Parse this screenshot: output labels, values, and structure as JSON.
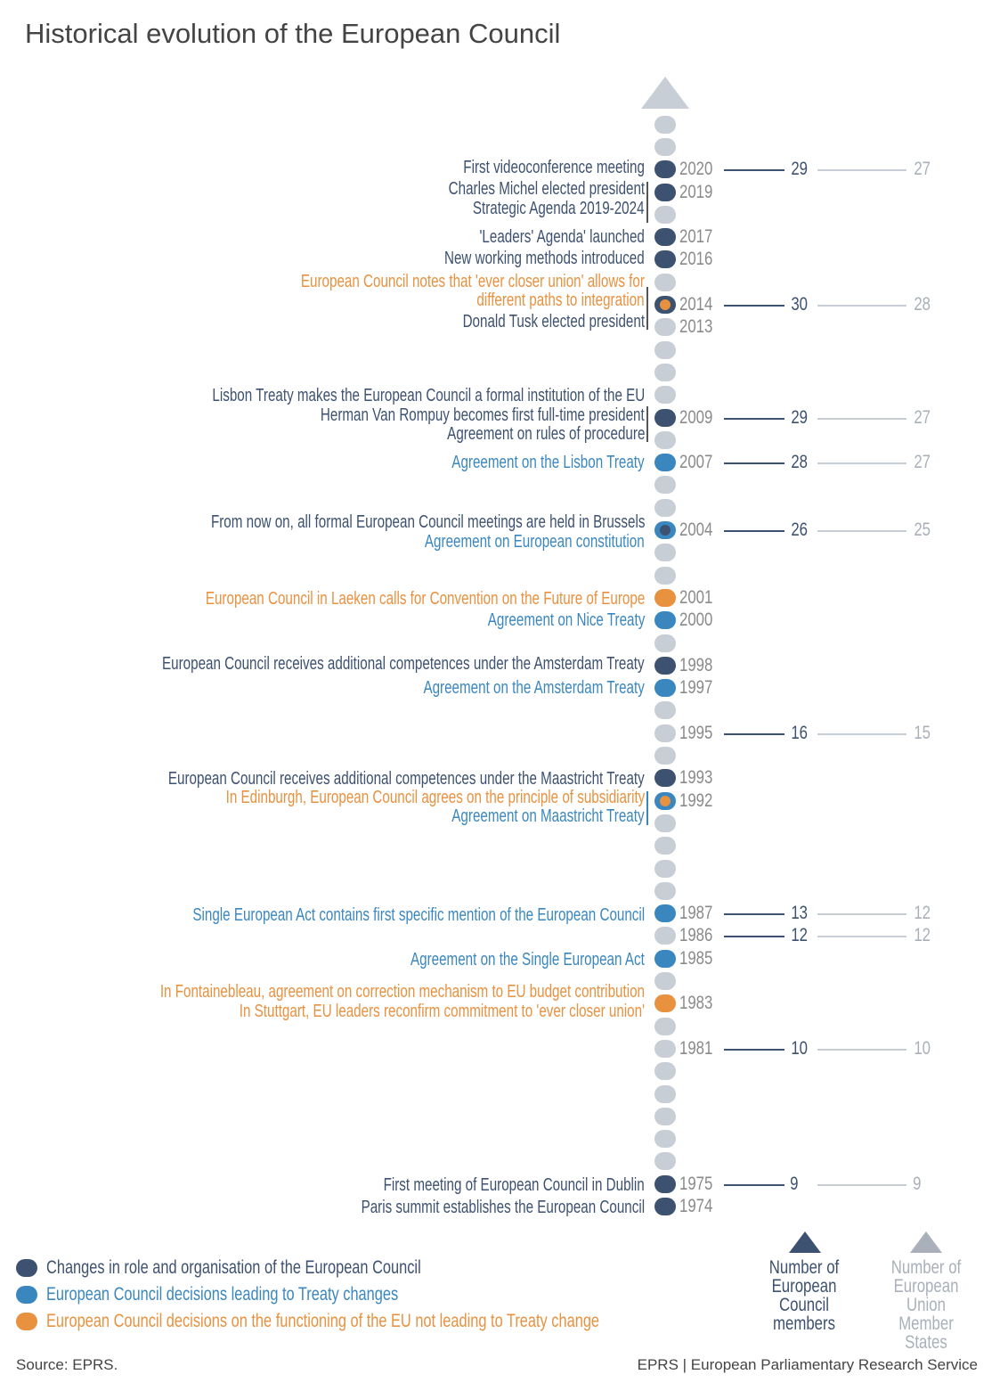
{
  "title": "Historical evolution of the European Council",
  "colors": {
    "dark": "#3d5170",
    "blue": "#3a87c0",
    "orange": "#e8913f",
    "gray": "#c8ced6",
    "year": "#8a8a8a",
    "light": "#a9b0b9"
  },
  "timeline": {
    "start_year": 1974,
    "end_year": 2022,
    "dots": {
      "1974": "dark",
      "1975": "dark",
      "1983": "orange",
      "1985": "blue",
      "1987": "blue",
      "1992": "blue+orange",
      "1993": "dark",
      "1997": "blue",
      "1998": "dark",
      "2000": "blue",
      "2001": "orange",
      "2004": "blue+dark",
      "2007": "blue",
      "2009": "dark",
      "2014": "dark+orange",
      "2016": "dark",
      "2017": "dark",
      "2019": "dark",
      "2020": "dark"
    },
    "year_labels": [
      "1974",
      "1975",
      "1981",
      "1983",
      "1985",
      "1986",
      "1987",
      "1992",
      "1993",
      "1995",
      "1997",
      "1998",
      "2000",
      "2001",
      "2004",
      "2007",
      "2009",
      "2013",
      "2014",
      "2016",
      "2017",
      "2019",
      "2020"
    ]
  },
  "counts": [
    {
      "year": "2020",
      "council_members": "29",
      "member_states": "27"
    },
    {
      "year": "2014",
      "council_members": "30",
      "member_states": "28"
    },
    {
      "year": "2009",
      "council_members": "29",
      "member_states": "27"
    },
    {
      "year": "2007",
      "council_members": "28",
      "member_states": "27"
    },
    {
      "year": "2004",
      "council_members": "26",
      "member_states": "25"
    },
    {
      "year": "1995",
      "council_members": "16",
      "member_states": "15"
    },
    {
      "year": "1987",
      "council_members": "13",
      "member_states": "12"
    },
    {
      "year": "1986",
      "council_members": "12",
      "member_states": "12"
    },
    {
      "year": "1981",
      "council_members": "10",
      "member_states": "10"
    },
    {
      "year": "1975",
      "council_members": "9",
      "member_states": "9"
    }
  ],
  "events": [
    {
      "text": "First videoconference meeting",
      "cat": "dark"
    },
    {
      "text": "Charles Michel elected president",
      "cat": "dark"
    },
    {
      "text": "Strategic Agenda 2019-2024",
      "cat": "dark"
    },
    {
      "text": "'Leaders' Agenda' launched",
      "cat": "dark"
    },
    {
      "text": "New working methods introduced",
      "cat": "dark"
    },
    {
      "text": "European Council notes that 'ever closer union' allows for",
      "cat": "orange"
    },
    {
      "text": "different paths to integration",
      "cat": "orange"
    },
    {
      "text": "Donald Tusk elected president",
      "cat": "dark"
    },
    {
      "text": "Lisbon Treaty makes the European Council a formal institution of the EU",
      "cat": "dark"
    },
    {
      "text": "Herman Van Rompuy  becomes first full-time president",
      "cat": "dark"
    },
    {
      "text": "Agreement on rules of procedure",
      "cat": "dark"
    },
    {
      "text": "Agreement on the Lisbon Treaty",
      "cat": "blue"
    },
    {
      "text": "From now on, all formal European Council meetings are held in Brussels",
      "cat": "dark"
    },
    {
      "text": "Agreement on European constitution",
      "cat": "blue"
    },
    {
      "text": "European Council in Laeken calls for Convention on the Future of Europe",
      "cat": "orange"
    },
    {
      "text": "Agreement on Nice Treaty",
      "cat": "blue"
    },
    {
      "text": "European Council receives additional competences under the Amsterdam Treaty",
      "cat": "dark"
    },
    {
      "text": "Agreement on the Amsterdam Treaty",
      "cat": "blue"
    },
    {
      "text": "European Council receives additional competences under the Maastricht Treaty",
      "cat": "dark"
    },
    {
      "text": "In Edinburgh, European Council agrees on the principle of subsidiarity",
      "cat": "orange"
    },
    {
      "text": "Agreement on Maastricht Treaty",
      "cat": "blue"
    },
    {
      "text": "Single European Act contains first  specific mention of the European Council",
      "cat": "blue"
    },
    {
      "text": "Agreement on the Single European Act",
      "cat": "blue"
    },
    {
      "text": "In Fontainebleau, agreement on correction mechanism to EU budget contribution",
      "cat": "orange"
    },
    {
      "text": "In Stuttgart, EU leaders reconfirm commitment to 'ever closer union'",
      "cat": "orange"
    },
    {
      "text": "First meeting of European Council in Dublin",
      "cat": "dark"
    },
    {
      "text": "Paris summit establishes the European Council",
      "cat": "dark"
    }
  ],
  "legend": [
    {
      "label": "Changes in role and organisation of the European Council",
      "cat": "dark"
    },
    {
      "label": "European Council decisions leading to Treaty changes",
      "cat": "blue"
    },
    {
      "label": "European Council decisions on the functioning of the EU not leading to Treaty change",
      "cat": "orange"
    }
  ],
  "columns": {
    "council": "Number of European Council members",
    "states": "Number of European Union Member States"
  },
  "footer": {
    "source": "Source: EPRS.",
    "publisher": "EPRS | European Parliamentary Research Service"
  }
}
